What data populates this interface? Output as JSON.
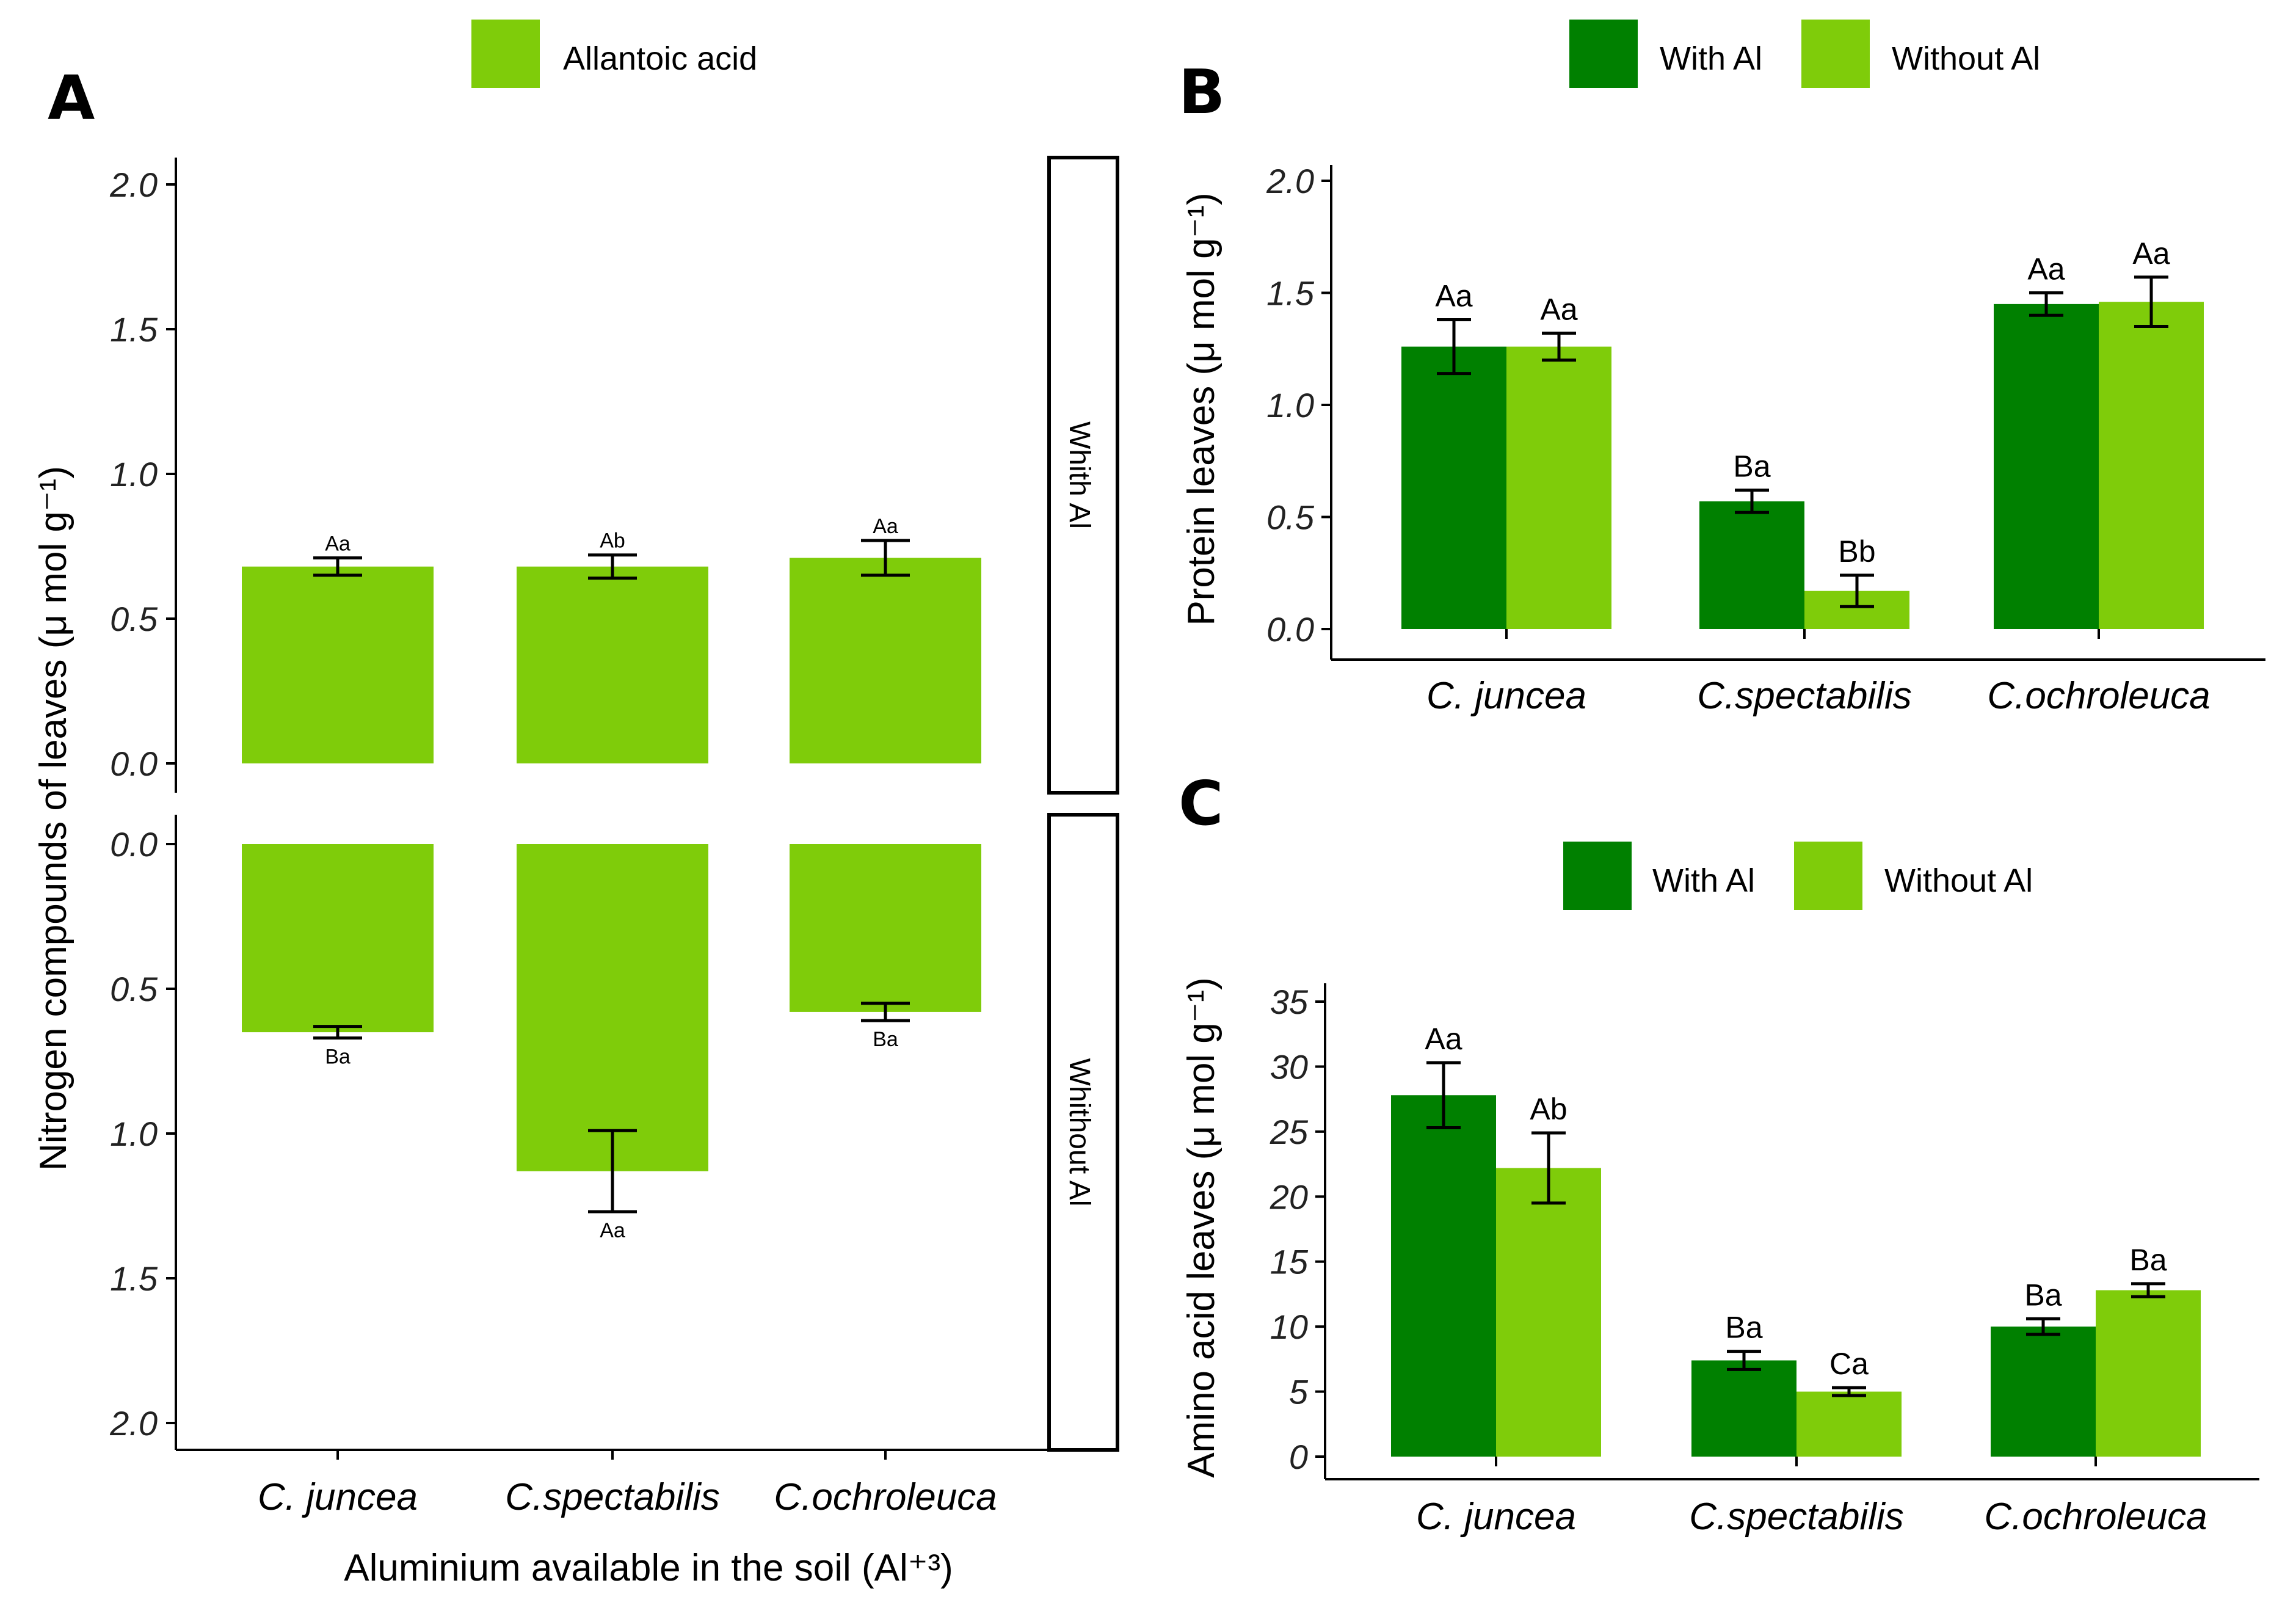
{
  "colors": {
    "with_al": "#008000",
    "without_al": "#7fcc0a",
    "allantoic": "#7fcc0a"
  },
  "panels": {
    "A": {
      "letter": "A",
      "legend_label": "Allantoic acid",
      "ylabel": "Nitrogen compounds of leaves (μ mol g⁻¹)",
      "xlabel": "Aluminium available in the soil (Al⁺³)",
      "strip_with": "Whith Al",
      "strip_without": "Whithout Al",
      "ticks": [
        "0.0",
        "0.5",
        "1.0",
        "1.5",
        "2.0"
      ]
    },
    "B": {
      "letter": "B",
      "legend_with": "With Al",
      "legend_without": "Without Al",
      "ylabel": "Protein leaves (μ mol g⁻¹)",
      "ticks": [
        "0.0",
        "0.5",
        "1.0",
        "1.5",
        "2.0"
      ]
    },
    "C": {
      "letter": "C",
      "legend_with": "With Al",
      "legend_without": "Without Al",
      "ylabel": "Amino acid leaves (μ mol g⁻¹)",
      "ticks": [
        "0",
        "5",
        "10",
        "15",
        "20",
        "25",
        "30",
        "35"
      ]
    }
  },
  "chart_data": [
    {
      "panel": "A",
      "type": "bar",
      "title": "",
      "xlabel": "Aluminium available in the soil (Al+3)",
      "ylabel": "Nitrogen compounds of leaves (µ mol g-1)",
      "categories": [
        "C. juncea",
        "C.spectabilis",
        "C.ochroleuca"
      ],
      "facets": [
        {
          "name": "Whith Al",
          "series": "Allantoic acid",
          "values": [
            0.68,
            0.68,
            0.71
          ],
          "errors": [
            0.03,
            0.04,
            0.06
          ],
          "labels": [
            "Aa",
            "Ab",
            "Aa"
          ],
          "ylim": [
            0,
            2.0
          ]
        },
        {
          "name": "Whithout Al",
          "series": "Allantoic acid",
          "values": [
            0.65,
            1.13,
            0.58
          ],
          "errors": [
            0.02,
            0.14,
            0.03
          ],
          "labels": [
            "Ba",
            "Aa",
            "Ba"
          ],
          "ylim": [
            0,
            2.0
          ],
          "reversed": true
        }
      ]
    },
    {
      "panel": "B",
      "type": "bar",
      "title": "",
      "xlabel": "",
      "ylabel": "Protein leaves (µ mol g-1)",
      "categories": [
        "C. juncea",
        "C.spectabilis",
        "C.ochroleuca"
      ],
      "series": [
        {
          "name": "With Al",
          "values": [
            1.26,
            0.57,
            1.45
          ],
          "errors": [
            0.12,
            0.05,
            0.05
          ],
          "labels": [
            "Aa",
            "Ba",
            "Aa"
          ]
        },
        {
          "name": "Without Al",
          "values": [
            1.26,
            0.17,
            1.46
          ],
          "errors": [
            0.06,
            0.07,
            0.11
          ],
          "labels": [
            "Aa",
            "Bb",
            "Aa"
          ]
        }
      ],
      "ylim": [
        0,
        2.0
      ],
      "legend": "top"
    },
    {
      "panel": "C",
      "type": "bar",
      "title": "",
      "xlabel": "",
      "ylabel": "Amino acid leaves (µ mol g-1)",
      "categories": [
        "C. juncea",
        "C.spectabilis",
        "C.ochroleuca"
      ],
      "series": [
        {
          "name": "With Al",
          "values": [
            27.8,
            7.4,
            10.0
          ],
          "errors": [
            2.5,
            0.7,
            0.6
          ],
          "labels": [
            "Aa",
            "Ba",
            "Ba"
          ]
        },
        {
          "name": "Without Al",
          "values": [
            22.2,
            5.0,
            12.8
          ],
          "errors": [
            2.7,
            0.3,
            0.5
          ],
          "labels": [
            "Ab",
            "Ca",
            "Ba"
          ]
        }
      ],
      "ylim": [
        0,
        35
      ],
      "legend": "top"
    }
  ]
}
